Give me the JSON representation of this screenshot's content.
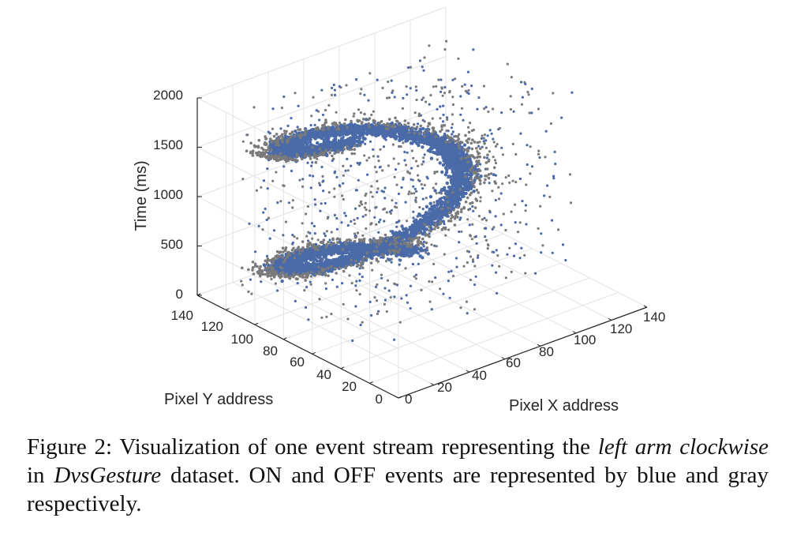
{
  "chart_data": {
    "type": "scatter",
    "projection": "3d",
    "x_axis": {
      "label": "Pixel X address",
      "ticks": [
        "0",
        "20",
        "40",
        "60",
        "80",
        "100",
        "120",
        "140"
      ],
      "range": [
        0,
        140
      ]
    },
    "y_axis": {
      "label": "Pixel Y address",
      "ticks": [
        "0",
        "20",
        "40",
        "60",
        "80",
        "100",
        "120",
        "140"
      ],
      "range": [
        0,
        140
      ]
    },
    "z_axis": {
      "label": "Time (ms)",
      "ticks": [
        "0",
        "500",
        "1000",
        "1500",
        "2000"
      ],
      "range": [
        0,
        2000
      ]
    },
    "grid": true,
    "series": [
      {
        "color": "#4a6aa8"
      },
      {
        "color": "#7a7a7a"
      }
    ]
  },
  "caption": {
    "prefix": "Figure 2: Visualization of one event stream representing the ",
    "gesture": "left arm clockwise",
    "middle": " in ",
    "dataset": "DvsGesture",
    "suffix": " dataset.  ON and OFF events are represented by blue and gray respectively."
  }
}
